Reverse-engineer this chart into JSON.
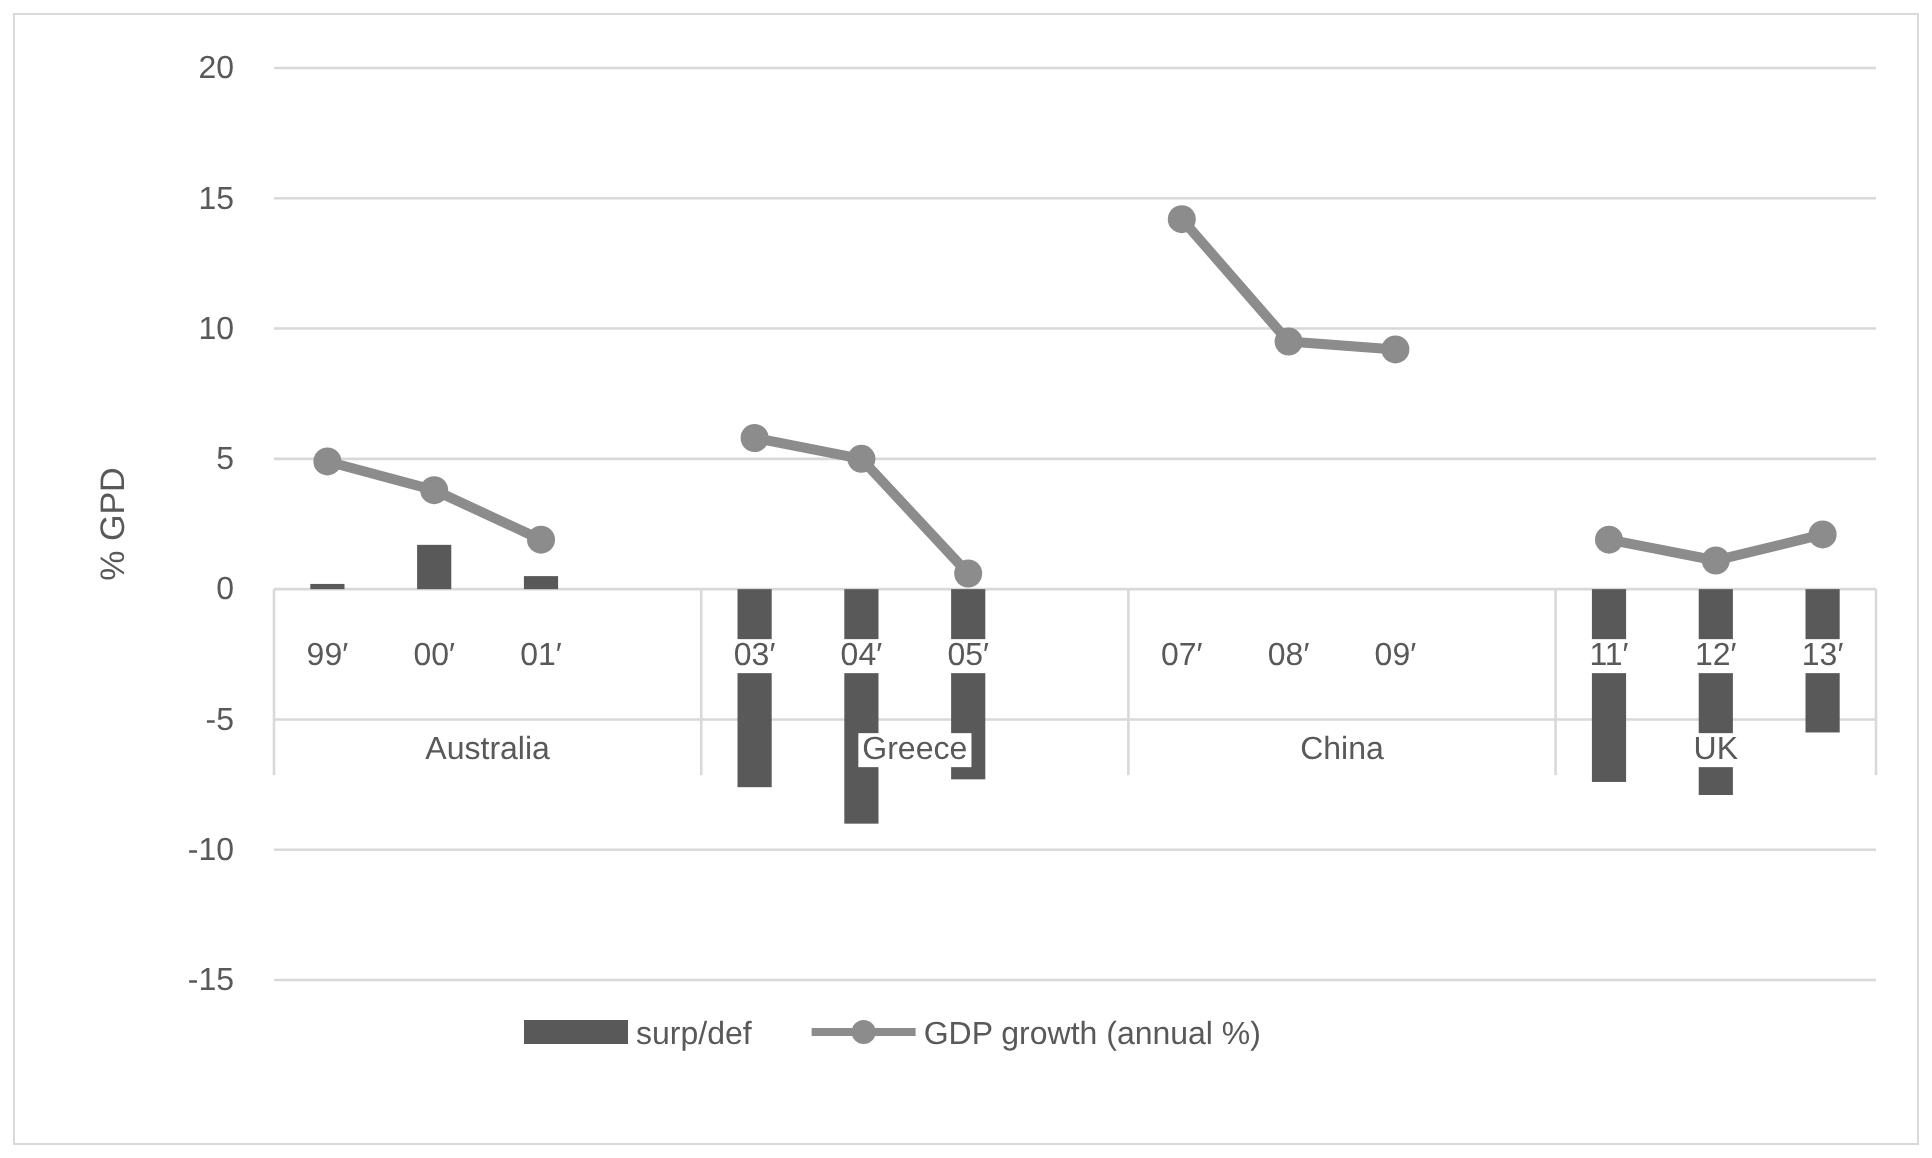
{
  "chart_data": {
    "type": "bar",
    "ylabel": "% GPD",
    "categories": [
      "99′",
      "00′",
      "01′",
      null,
      "03′",
      "04′",
      "05′",
      null,
      "07′",
      "08′",
      "09′",
      null,
      "11′",
      "12′",
      "13′"
    ],
    "series": [
      {
        "name": "surp/def",
        "color": "#595959",
        "values": [
          0.2,
          1.7,
          0.5,
          null,
          -7.6,
          -9.0,
          -7.3,
          null,
          null,
          null,
          null,
          null,
          -7.4,
          -7.9,
          -5.5
        ]
      },
      {
        "name": "GDP growth (annual %)",
        "type": "line",
        "color": "#8c8c8c",
        "marker": "circle",
        "values": [
          4.9,
          3.8,
          1.9,
          null,
          5.8,
          5.0,
          0.6,
          null,
          14.2,
          9.5,
          9.2,
          null,
          1.9,
          1.1,
          2.1
        ]
      }
    ],
    "annotations": [
      "Australia",
      "Greece",
      "China",
      "UK"
    ],
    "ylim": [
      -15,
      20
    ],
    "yticks": [
      -15,
      -10,
      -5,
      0,
      5,
      10,
      15,
      20
    ],
    "grid": "y",
    "legend": "bottom"
  }
}
